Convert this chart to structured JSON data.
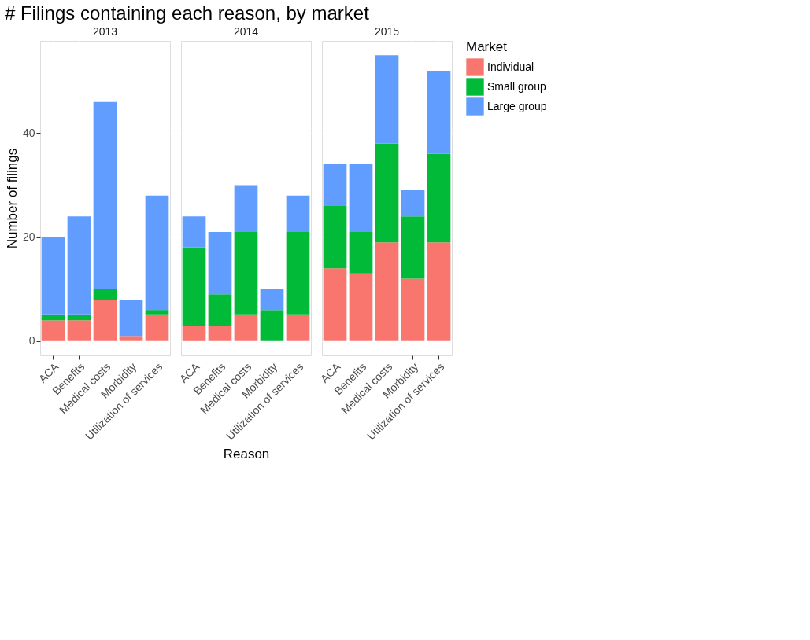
{
  "chart_data": [
    {
      "type": "bar",
      "title": "# Filings containing each reason, by market",
      "subtitle": "2013",
      "ylabel": "Number of filings",
      "categories": [
        "ACA",
        "Benefits",
        "Medical costs",
        "Morbidity",
        "Utilization of services"
      ],
      "stacked": true,
      "ylim": [
        -2.75,
        57.75
      ],
      "yticks": [
        0,
        20,
        40
      ],
      "grid": true,
      "series": [
        {
          "color": "#f8766d",
          "values": [
            4,
            4,
            8,
            1,
            5
          ]
        },
        {
          "color": "#00ba38",
          "values": [
            1,
            1,
            2,
            0,
            1
          ]
        },
        {
          "color": "#619cff",
          "values": [
            15,
            19,
            36,
            7,
            22
          ]
        }
      ]
    },
    {
      "type": "bar",
      "subtitle": "2014",
      "xlabel": "Reason",
      "categories": [
        "ACA",
        "Benefits",
        "Medical costs",
        "Morbidity",
        "Utilization of services"
      ],
      "stacked": true,
      "ylim": [
        -2.75,
        57.75
      ],
      "yticks": [
        0,
        20,
        40
      ],
      "grid": true,
      "tick_labels": "x",
      "series": [
        {
          "color": "#f8766d",
          "values": [
            3,
            3,
            5,
            0,
            5
          ]
        },
        {
          "color": "#00ba38",
          "values": [
            15,
            6,
            16,
            6,
            16
          ]
        },
        {
          "color": "#619cff",
          "values": [
            6,
            12,
            9,
            4,
            7
          ]
        }
      ]
    },
    {
      "type": "bar",
      "subtitle": "2015",
      "legend_title": "Market",
      "legend": "right",
      "categories": [
        "ACA",
        "Benefits",
        "Medical costs",
        "Morbidity",
        "Utilization of services"
      ],
      "stacked": true,
      "ylim": [
        -2.75,
        57.75
      ],
      "yticks": [
        0,
        20,
        40
      ],
      "grid": true,
      "tick_labels": "x",
      "series": [
        {
          "name": "Individual",
          "color": "#f8766d",
          "values": [
            14,
            13,
            19,
            12,
            19
          ]
        },
        {
          "name": "Small group",
          "color": "#00ba38",
          "values": [
            12,
            8,
            19,
            12,
            17
          ]
        },
        {
          "name": "Large group",
          "color": "#619cff",
          "values": [
            8,
            13,
            17,
            5,
            16
          ]
        }
      ]
    }
  ]
}
